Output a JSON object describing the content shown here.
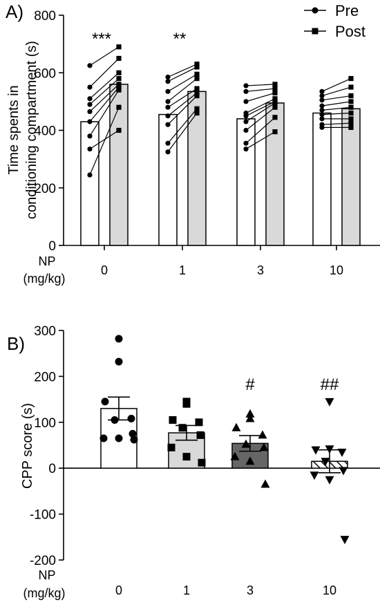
{
  "chart_data": [
    {
      "panel_label": "A)",
      "type": "bar",
      "ylabel_line1": "Time spents in",
      "ylabel_line2": "conditioning compartment (s)",
      "xlabel_line1": "NP",
      "xlabel_line2": "(mg/kg)",
      "categories": [
        "0",
        "1",
        "3",
        "10"
      ],
      "yticks": [
        "0",
        "200",
        "400",
        "600",
        "800"
      ],
      "ylim": [
        0,
        800
      ],
      "legend": {
        "position": "top-right",
        "pre_label": "Pre",
        "post_label": "Post"
      },
      "series": [
        {
          "name": "Pre",
          "values": [
            430,
            455,
            440,
            460
          ],
          "color": "#ffffff"
        },
        {
          "name": "Post",
          "values": [
            560,
            535,
            495,
            475
          ],
          "color": "#d9d9d9"
        }
      ],
      "paired_points": [
        {
          "category": "0",
          "pre": [
            625,
            550,
            510,
            490,
            465,
            430,
            380,
            335,
            245
          ],
          "post": [
            690,
            650,
            600,
            580,
            560,
            550,
            540,
            400,
            480
          ]
        },
        {
          "category": "1",
          "pre": [
            585,
            570,
            535,
            500,
            480,
            450,
            420,
            355,
            325
          ],
          "post": [
            630,
            620,
            595,
            580,
            545,
            530,
            520,
            475,
            460
          ]
        },
        {
          "category": "3",
          "pre": [
            555,
            535,
            500,
            460,
            450,
            430,
            400,
            355,
            335
          ],
          "post": [
            560,
            545,
            530,
            510,
            500,
            495,
            480,
            445,
            395
          ]
        },
        {
          "category": "10",
          "pre": [
            535,
            520,
            505,
            485,
            470,
            455,
            440,
            420,
            410
          ],
          "post": [
            580,
            550,
            520,
            500,
            480,
            460,
            440,
            425,
            410
          ]
        }
      ],
      "annotations": [
        {
          "category": "0",
          "text": "***"
        },
        {
          "category": "1",
          "text": "**"
        }
      ]
    },
    {
      "panel_label": "B)",
      "type": "bar",
      "ylabel": "CPP score (s)",
      "xlabel_line1": "NP",
      "xlabel_line2": "(mg/kg)",
      "categories": [
        "0",
        "1",
        "3",
        "10"
      ],
      "yticks": [
        "300",
        "200",
        "100",
        "0",
        "-100",
        "-200"
      ],
      "ylim": [
        -200,
        300
      ],
      "values": [
        130,
        77,
        54,
        15
      ],
      "sem": [
        25,
        16,
        17,
        25
      ],
      "bar_colors": [
        "#ffffff",
        "#d9d9d9",
        "#666666",
        "hatched"
      ],
      "markers": [
        "circle",
        "square",
        "triangle-up",
        "triangle-down"
      ],
      "points": [
        [
          282,
          232,
          145,
          108,
          105,
          75,
          65,
          65,
          62
        ],
        [
          145,
          140,
          105,
          100,
          88,
          72,
          45,
          25,
          12
        ],
        [
          118,
          108,
          88,
          72,
          52,
          45,
          25,
          15,
          -35
        ],
        [
          145,
          42,
          40,
          35,
          15,
          -5,
          -15,
          -25,
          -155
        ]
      ],
      "annotations": [
        {
          "category": "3",
          "text": "#"
        },
        {
          "category": "10",
          "text": "##"
        }
      ]
    }
  ]
}
